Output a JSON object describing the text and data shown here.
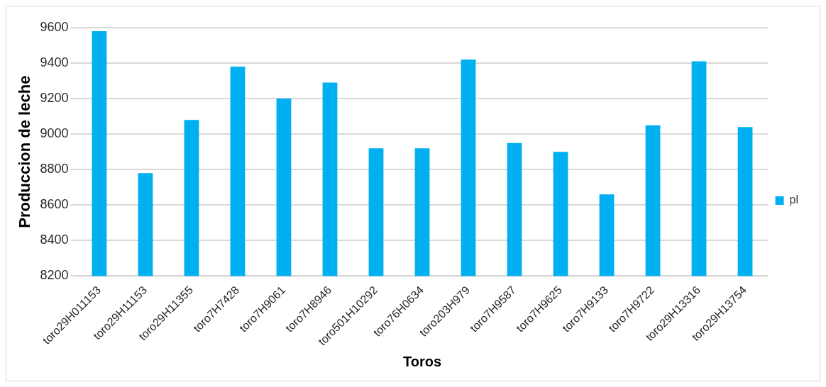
{
  "chart_data": {
    "type": "bar",
    "xlabel": "Toros",
    "ylabel": "Produccion de leche",
    "categories": [
      "toro29H011153",
      "toro29H11153",
      "toro29H11355",
      "toro7H7428",
      "toro7H9061",
      "toro7H8946",
      "toro501H10292",
      "toro76H0634",
      "toro203H979",
      "toro7H9587",
      "toro7H9625",
      "toro7H9133",
      "toro7H9722",
      "toro29H13316",
      "toro29H13754"
    ],
    "series": [
      {
        "name": "pl",
        "color": "#00b0f0",
        "values": [
          9580,
          8780,
          9080,
          9380,
          9200,
          9290,
          8920,
          8920,
          9420,
          8950,
          8900,
          8660,
          9050,
          9410,
          9040
        ]
      }
    ],
    "ylim": [
      8200,
      9600
    ],
    "yticks": [
      8200,
      8400,
      8600,
      8800,
      9000,
      9200,
      9400,
      9600
    ],
    "grid": "y",
    "legend": "right"
  }
}
